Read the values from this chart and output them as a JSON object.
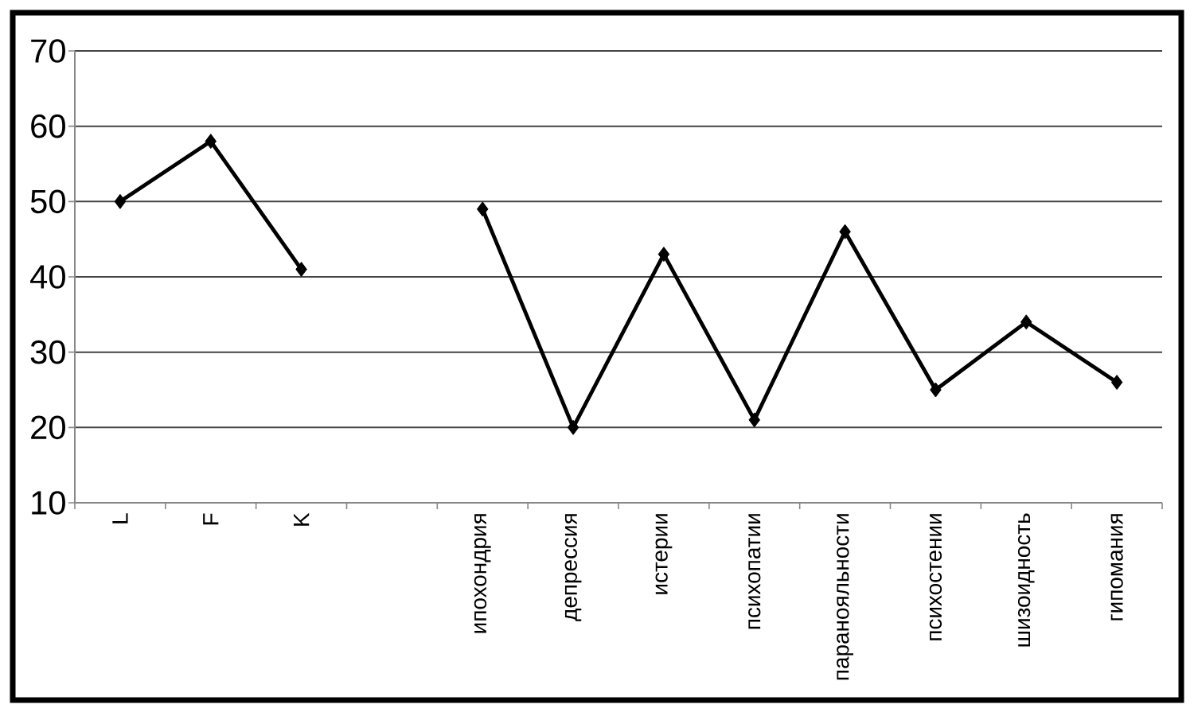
{
  "chart_data": {
    "type": "line",
    "categories": [
      "L",
      "F",
      "K",
      null,
      "ипохондрия",
      "депрессия",
      "истерии",
      "психопатии",
      "паранояльности",
      "психостении",
      "шизоидность",
      "гипомания"
    ],
    "values": [
      50,
      58,
      41,
      null,
      49,
      20,
      43,
      21,
      46,
      25,
      34,
      26
    ],
    "color": "#000000",
    "marker": "diamond",
    "ylim": [
      10,
      70
    ],
    "yticks": [
      10,
      20,
      30,
      40,
      50,
      60,
      70
    ],
    "grid": "y"
  }
}
